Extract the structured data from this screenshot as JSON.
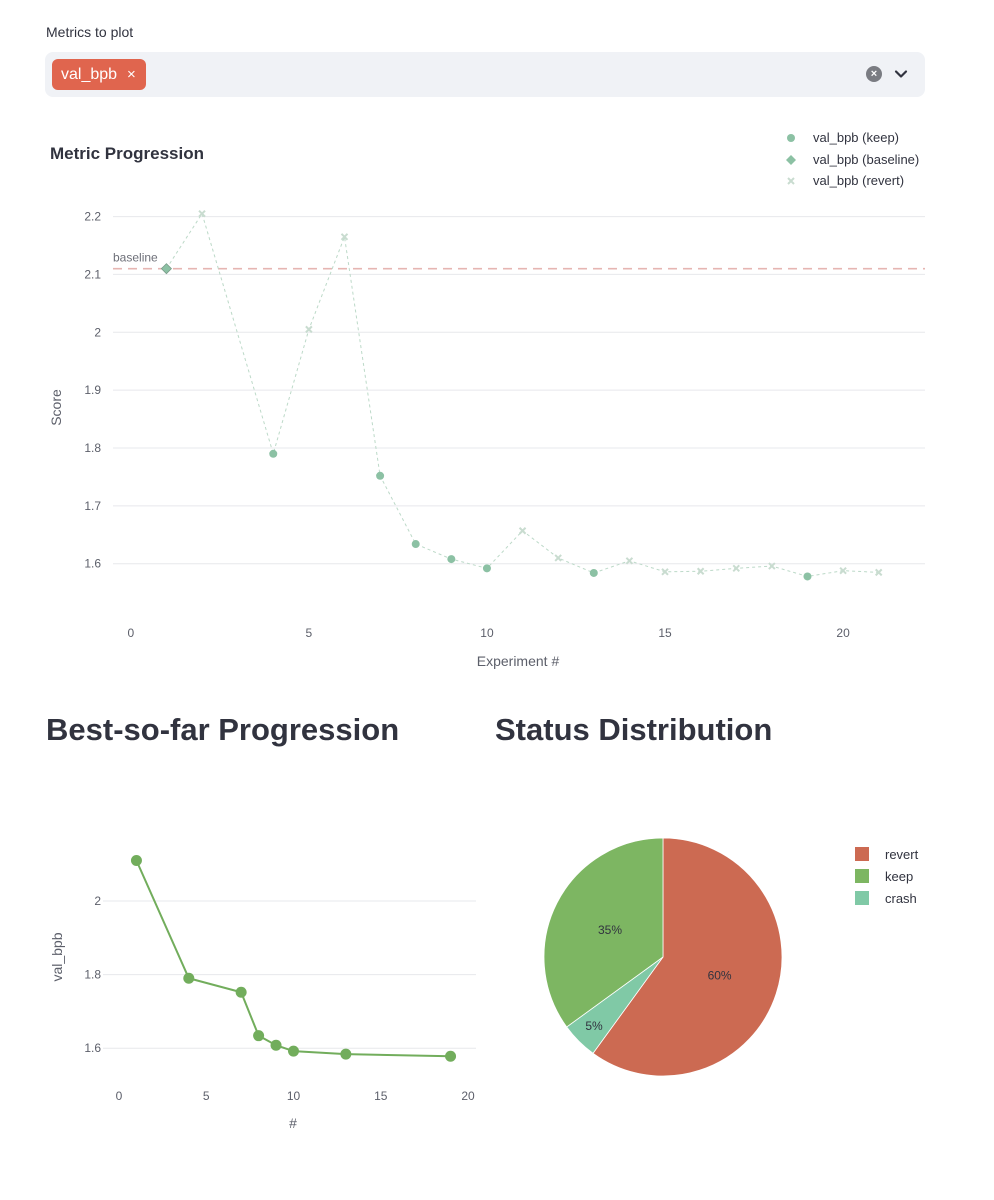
{
  "metrics_select": {
    "label": "Metrics to plot",
    "selected": [
      "val_bpb"
    ],
    "remove_symbol": "×",
    "clear_symbol": "×"
  },
  "colors": {
    "keep": "#8cc1a4",
    "baseline": "#8cc1a4",
    "revert": "#c9dcd0",
    "baseline_line": "#e6b5b2",
    "best_line": "#72ad5c",
    "pie_revert": "#cc6a52",
    "pie_keep": "#7db662",
    "pie_crash": "#80c9a6",
    "chip": "#e0654e"
  },
  "chart_data": [
    {
      "type": "scatter",
      "title": "Metric Progression",
      "xlabel": "Experiment #",
      "ylabel": "Score",
      "xlim": [
        -0.5,
        22.3
      ],
      "ylim": [
        1.52,
        2.22
      ],
      "xticks": [
        0,
        5,
        10,
        15,
        20
      ],
      "yticks": [
        1.6,
        1.7,
        1.8,
        1.9,
        2,
        2.1,
        2.2
      ],
      "grid": true,
      "legend_position": "top-right",
      "baseline": {
        "value": 2.11,
        "label": "baseline"
      },
      "series": [
        {
          "name": "val_bpb (keep)",
          "marker": "circle",
          "x": [
            4,
            7,
            8,
            9,
            10,
            13,
            19
          ],
          "y": [
            1.79,
            1.752,
            1.634,
            1.608,
            1.592,
            1.584,
            1.578
          ]
        },
        {
          "name": "val_bpb (baseline)",
          "marker": "diamond",
          "x": [
            1
          ],
          "y": [
            2.11
          ]
        },
        {
          "name": "val_bpb (revert)",
          "marker": "x",
          "x": [
            2,
            5,
            6,
            11,
            12,
            14,
            15,
            16,
            17,
            18,
            20,
            21
          ],
          "y": [
            2.205,
            2.005,
            2.165,
            1.657,
            1.61,
            1.605,
            1.586,
            1.587,
            1.592,
            1.596,
            1.588,
            1.585
          ]
        }
      ],
      "connector_order": [
        1,
        2,
        4,
        5,
        6,
        7,
        8,
        9,
        10,
        11,
        12,
        13,
        14,
        15,
        16,
        17,
        18,
        19,
        20,
        21
      ]
    },
    {
      "type": "line",
      "title": "Best-so-far Progression",
      "xlabel": "#",
      "ylabel": "val_bpb",
      "xlim": [
        0,
        20
      ],
      "ylim": [
        1.5,
        2.22
      ],
      "xticks": [
        0,
        5,
        10,
        15,
        20
      ],
      "yticks": [
        1.6,
        1.8,
        2
      ],
      "grid": true,
      "x": [
        1,
        4,
        7,
        8,
        9,
        10,
        13,
        19
      ],
      "y": [
        2.11,
        1.79,
        1.752,
        1.634,
        1.608,
        1.592,
        1.584,
        1.578
      ]
    },
    {
      "type": "pie",
      "title": "Status Distribution",
      "legend_position": "top-right",
      "slices": [
        {
          "label": "revert",
          "value": 60,
          "text": "60%"
        },
        {
          "label": "crash",
          "value": 5,
          "text": "5%"
        },
        {
          "label": "keep",
          "value": 35,
          "text": "35%"
        }
      ],
      "legend_order": [
        "revert",
        "keep",
        "crash"
      ]
    }
  ]
}
